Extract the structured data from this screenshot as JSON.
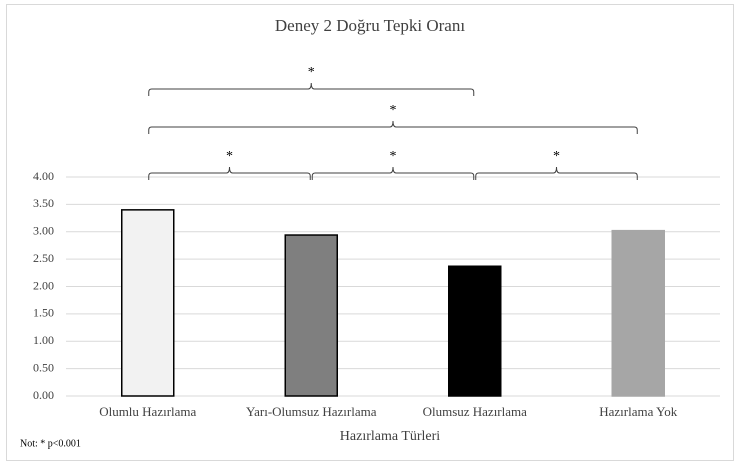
{
  "chart_data": {
    "type": "bar",
    "title": "Deney 2 Doğru Tepki Oranı",
    "xlabel": "Hazırlama Türleri",
    "note": "Not: * p<0.001",
    "categories": [
      "Olumlu Hazırlama",
      "Yarı-Olumsuz Hazırlama",
      "Olumsuz Hazırlama",
      "Hazırlama Yok"
    ],
    "values": [
      3.4,
      2.94,
      2.37,
      3.02
    ],
    "colors": [
      "#f2f2f2",
      "#7f7f7f",
      "#000000",
      "#a6a6a6"
    ],
    "edgecolors": [
      "#000000",
      "#000000",
      "#000000",
      "#a6a6a6"
    ],
    "ylim": [
      0,
      4
    ],
    "yticks": [
      {
        "value": 0,
        "label": "0.00"
      },
      {
        "value": 0.5,
        "label": "0.50"
      },
      {
        "value": 1,
        "label": "1.00"
      },
      {
        "value": 1.5,
        "label": "1.50"
      },
      {
        "value": 2,
        "label": "2.00"
      },
      {
        "value": 2.5,
        "label": "2.50"
      },
      {
        "value": 3,
        "label": "3.00"
      },
      {
        "value": 3.5,
        "label": "3.50"
      },
      {
        "value": 4,
        "label": "4.00"
      }
    ],
    "grid": true,
    "annotations": [
      {
        "from": 0,
        "to": 1,
        "label": "*"
      },
      {
        "from": 1,
        "to": 2,
        "label": "*"
      },
      {
        "from": 2,
        "to": 3,
        "label": "*"
      },
      {
        "from": 0,
        "to": 3,
        "label": "*"
      },
      {
        "from": 0,
        "to": 2,
        "label": "*"
      }
    ]
  }
}
